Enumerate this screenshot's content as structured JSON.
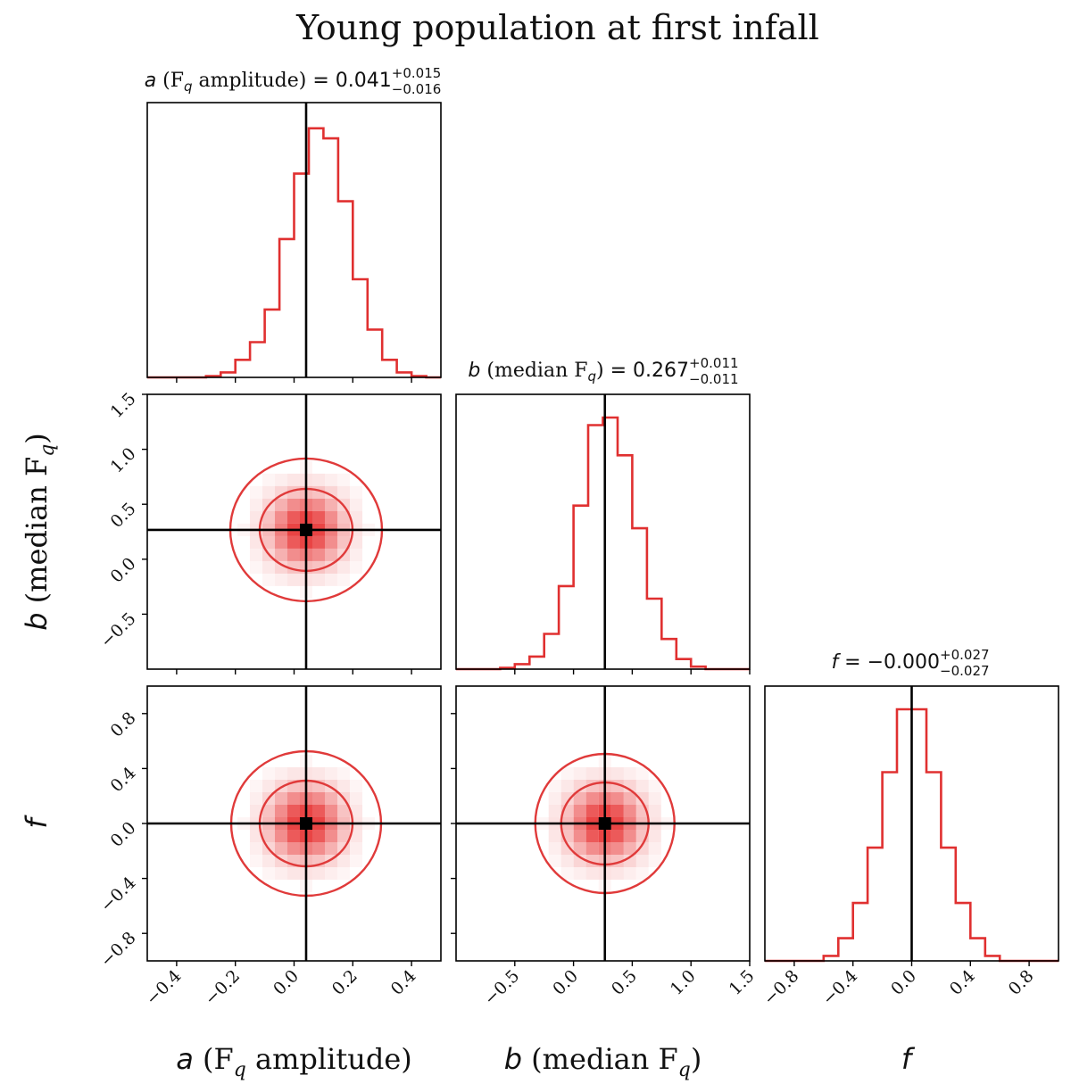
{
  "page_title": "Young population at first infall",
  "chart_data": {
    "type": "corner",
    "title": "Young population at first infall",
    "parameters": [
      {
        "name": "a",
        "axis_label_symbol": "a",
        "axis_label_text": "(F",
        "axis_label_sub": "q",
        "axis_label_tail": " amplitude)",
        "median": 0.041,
        "err_plus": "+0.015",
        "err_minus": "−0.016",
        "title_value": "0.041",
        "range": [
          -0.5,
          0.5
        ],
        "ticks": [
          -0.4,
          -0.2,
          0.0,
          0.2,
          0.4
        ],
        "tick_labels": [
          "−0.4",
          "−0.2",
          "0.0",
          "0.2",
          "0.4"
        ],
        "truth": 0.041,
        "hist_edges": [
          -0.5,
          -0.45,
          -0.4,
          -0.35,
          -0.3,
          -0.25,
          -0.2,
          -0.15,
          -0.1,
          -0.05,
          0.0,
          0.05,
          0.1,
          0.15,
          0.2,
          0.25,
          0.3,
          0.35,
          0.4,
          0.45,
          0.5
        ],
        "hist_counts": [
          0.0,
          0.0,
          0.0,
          0.0,
          0.005,
          0.02,
          0.07,
          0.14,
          0.27,
          0.55,
          0.81,
          0.99,
          0.95,
          0.7,
          0.39,
          0.19,
          0.07,
          0.02,
          0.005,
          0.0
        ]
      },
      {
        "name": "b",
        "axis_label_symbol": "b",
        "axis_label_text": "(median F",
        "axis_label_sub": "q",
        "axis_label_tail": ")",
        "median": 0.267,
        "err_plus": "+0.011",
        "err_minus": "−0.011",
        "title_value": "0.267",
        "range": [
          -1.0,
          1.5
        ],
        "ticks": [
          -0.5,
          0.0,
          0.5,
          1.0,
          1.5
        ],
        "tick_labels": [
          "−0.5",
          "0.0",
          "0.5",
          "1.0",
          "1.5"
        ],
        "truth": 0.267,
        "hist_edges": [
          -1.0,
          -0.875,
          -0.75,
          -0.625,
          -0.5,
          -0.375,
          -0.25,
          -0.125,
          0.0,
          0.125,
          0.25,
          0.375,
          0.5,
          0.625,
          0.75,
          0.875,
          1.0,
          1.125,
          1.25,
          1.375,
          1.5
        ],
        "hist_counts": [
          0.0,
          0.0,
          0.0,
          0.005,
          0.02,
          0.05,
          0.14,
          0.33,
          0.65,
          0.97,
          1.0,
          0.85,
          0.56,
          0.28,
          0.12,
          0.04,
          0.01,
          0.0,
          0.0,
          0.0
        ]
      },
      {
        "name": "f",
        "axis_label_symbol": "f",
        "axis_label_text": "",
        "axis_label_sub": "",
        "axis_label_tail": "",
        "median": -0.0,
        "err_plus": "+0.027",
        "err_minus": "−0.027",
        "title_value": "−0.000",
        "range": [
          -1.0,
          1.0
        ],
        "ticks": [
          -0.8,
          -0.4,
          0.0,
          0.4,
          0.8
        ],
        "tick_labels": [
          "−0.8",
          "−0.4",
          "0.0",
          "0.4",
          "0.8"
        ],
        "truth": 0.0,
        "hist_edges": [
          -1.0,
          -0.9,
          -0.8,
          -0.7,
          -0.6,
          -0.5,
          -0.4,
          -0.3,
          -0.2,
          -0.1,
          0.0,
          0.1,
          0.2,
          0.3,
          0.4,
          0.5,
          0.6,
          0.7,
          0.8,
          0.9,
          1.0
        ],
        "hist_counts": [
          0.0,
          0.0,
          0.0,
          0.0,
          0.02,
          0.09,
          0.23,
          0.45,
          0.75,
          1.0,
          1.0,
          0.75,
          0.45,
          0.23,
          0.09,
          0.02,
          0.0,
          0.0,
          0.0,
          0.0
        ]
      }
    ],
    "contour_levels_sigma": [
      0.5,
      1.0,
      1.6
    ],
    "hist_color": "#e03030",
    "truth_color": "#000000",
    "density_color": "#e52020"
  }
}
